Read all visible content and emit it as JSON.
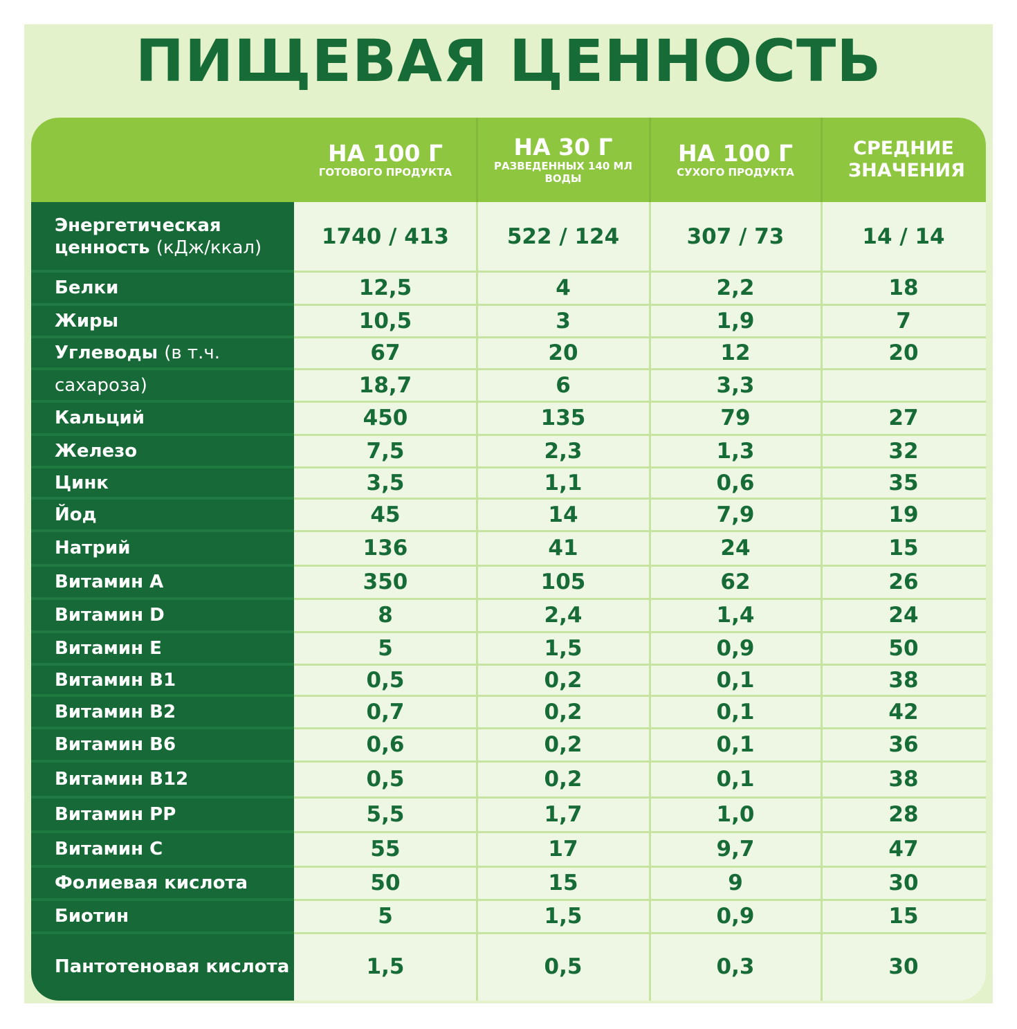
{
  "title": "ПИЩЕВАЯ ЦЕННОСТЬ",
  "columns": [
    {
      "main": "НА 100 Г",
      "sub": "ГОТОВОГО ПРОДУКТА"
    },
    {
      "main": "НА 30 Г",
      "sub": "РАЗВЕДЕННЫХ 140 МЛ ВОДЫ"
    },
    {
      "main": "НА 100 Г",
      "sub": "СУХОГО ПРОДУКТА"
    },
    {
      "main": "СРЕДНИЕ ЗНАЧЕНИЯ",
      "sub": ""
    }
  ],
  "rows": [
    {
      "label": "Энергетическая ценность",
      "note": "(кДж/ккал)",
      "values": [
        "1740 / 413",
        "522 / 124",
        "307 / 73",
        "14 / 14"
      ]
    },
    {
      "label": "Белки",
      "note": "",
      "values": [
        "12,5",
        "4",
        "2,2",
        "18"
      ]
    },
    {
      "label": "Жиры",
      "note": "",
      "values": [
        "10,5",
        "3",
        "1,9",
        "7"
      ]
    },
    {
      "label": "Углеводы",
      "note": "(в т.ч.",
      "values": [
        "67",
        "20",
        "12",
        "20"
      ]
    },
    {
      "label": "",
      "note": "сахароза)",
      "values": [
        "18,7",
        "6",
        "3,3",
        ""
      ]
    },
    {
      "label": "Кальций",
      "note": "",
      "values": [
        "450",
        "135",
        "79",
        "27"
      ]
    },
    {
      "label": "Железо",
      "note": "",
      "values": [
        "7,5",
        "2,3",
        "1,3",
        "32"
      ]
    },
    {
      "label": "Цинк",
      "note": "",
      "values": [
        "3,5",
        "1,1",
        "0,6",
        "35"
      ]
    },
    {
      "label": "Йод",
      "note": "",
      "values": [
        "45",
        "14",
        "7,9",
        "19"
      ]
    },
    {
      "label": "Натрий",
      "note": "",
      "values": [
        "136",
        "41",
        "24",
        "15"
      ]
    },
    {
      "label": "Витамин A",
      "note": "",
      "values": [
        "350",
        "105",
        "62",
        "26"
      ]
    },
    {
      "label": "Витамин D",
      "note": "",
      "values": [
        "8",
        "2,4",
        "1,4",
        "24"
      ]
    },
    {
      "label": "Витамин E",
      "note": "",
      "values": [
        "5",
        "1,5",
        "0,9",
        "50"
      ]
    },
    {
      "label": "Витамин B1",
      "note": "",
      "values": [
        "0,5",
        "0,2",
        "0,1",
        "38"
      ]
    },
    {
      "label": "Витамин B2",
      "note": "",
      "values": [
        "0,7",
        "0,2",
        "0,1",
        "42"
      ]
    },
    {
      "label": "Витамин B6",
      "note": "",
      "values": [
        "0,6",
        "0,2",
        "0,1",
        "36"
      ]
    },
    {
      "label": "Витамин B12",
      "note": "",
      "values": [
        "0,5",
        "0,2",
        "0,1",
        "38"
      ]
    },
    {
      "label": "Витамин PP",
      "note": "",
      "values": [
        "5,5",
        "1,7",
        "1,0",
        "28"
      ]
    },
    {
      "label": "Витамин C",
      "note": "",
      "values": [
        "55",
        "17",
        "9,7",
        "47"
      ]
    },
    {
      "label": "Фолиевая кислота",
      "note": "",
      "values": [
        "50",
        "15",
        "9",
        "30"
      ]
    },
    {
      "label": "Биотин",
      "note": "",
      "values": [
        "5",
        "1,5",
        "0,9",
        "15"
      ]
    },
    {
      "label": "Пантотеновая кислота",
      "note": "",
      "values": [
        "1,5",
        "0,5",
        "0,3",
        "30"
      ]
    }
  ],
  "colors": {
    "panel": "#e4f2cb",
    "header": "#8fc640",
    "label_bg": "#176a38",
    "cell_bg": "#eef7e3",
    "text": "#176b37"
  }
}
